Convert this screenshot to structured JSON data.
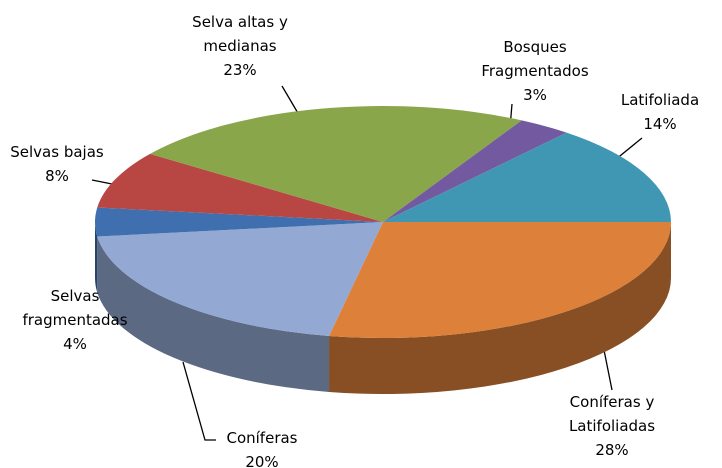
{
  "chart_data": {
    "type": "pie",
    "categories": [
      "Coníferas y Latifoliadas",
      "Coníferas",
      "Selvas fragmentadas",
      "Selvas bajas",
      "Selva altas y medianas",
      "Bosques Fragmentados",
      "Latifoliada"
    ],
    "values": [
      28,
      20,
      4,
      8,
      23,
      3,
      14
    ],
    "value_labels": [
      "28%",
      "20%",
      "4%",
      "8%",
      "23%",
      "3%",
      "14%"
    ],
    "colors": [
      "#dc803a",
      "#93a9d4",
      "#3f6fae",
      "#b84744",
      "#8aa64b",
      "#7359a0",
      "#3f97b4"
    ]
  }
}
